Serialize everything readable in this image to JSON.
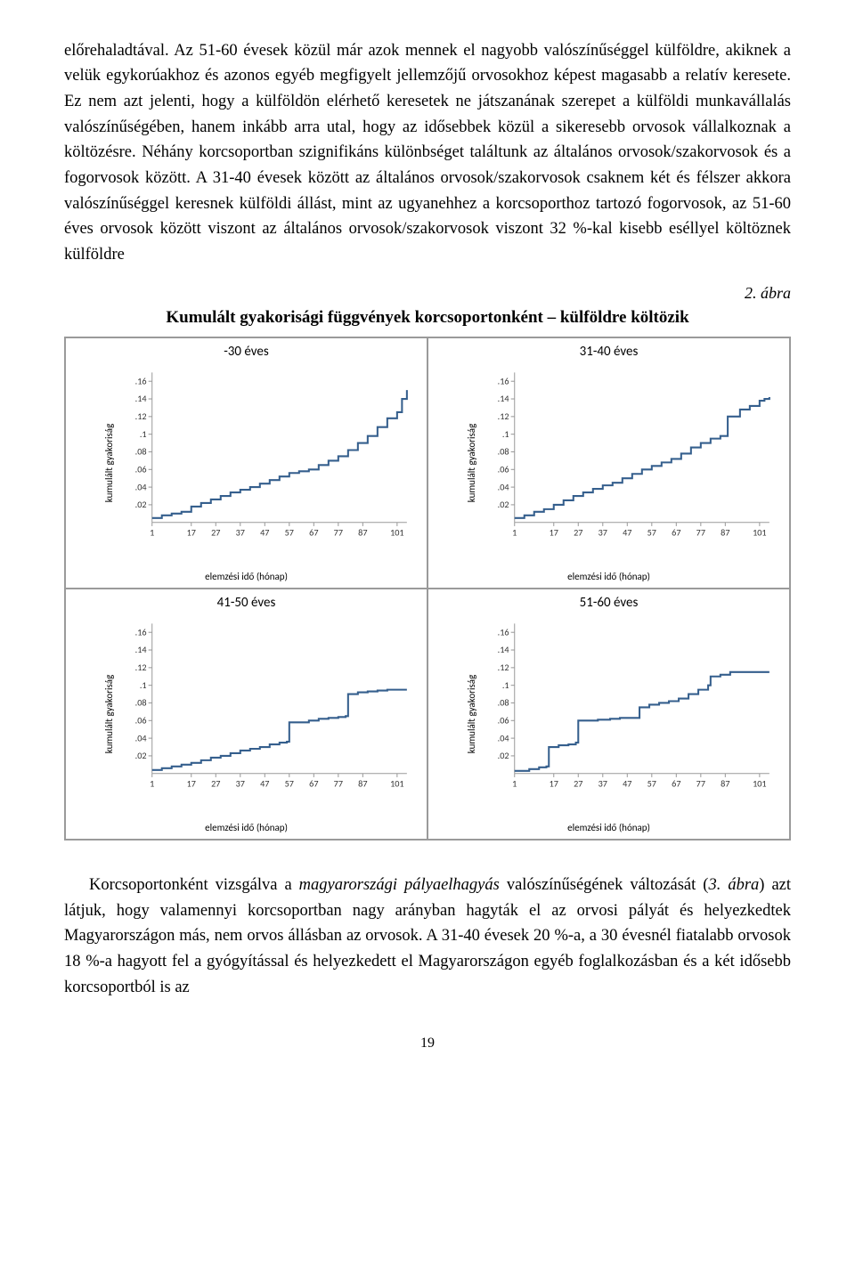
{
  "paragraph1": "előrehaladtával. Az 51-60 évesek közül már azok mennek el nagyobb valószínűséggel külföldre, akiknek a velük egykorúakhoz és azonos egyéb megfigyelt jellemzőjű orvosokhoz képest magasabb a relatív keresete. Ez nem azt jelenti, hogy a külföldön elérhető keresetek ne játszanának szerepet a külföldi munkavállalás valószínűségében, hanem inkább arra utal, hogy az idősebbek közül a sikeresebb orvosok vállalkoznak a költözésre. Néhány korcsoportban szignifikáns különbséget találtunk az általános orvosok/szakorvosok és a fogorvosok között. A 31-40 évesek között az általános orvosok/szakorvosok csaknem két és félszer akkora valószínűséggel keresnek külföldi állást, mint az ugyanehhez a korcsoporthoz tartozó fogorvosok, az 51-60 éves orvosok között viszont az általános orvosok/szakorvosok viszont 32 %-kal kisebb  eséllyel költöznek külföldre",
  "figLabel": "2. ábra",
  "figTitle": "Kumulált gyakorisági függvények korcsoportonként – külföldre költözik",
  "panels": [
    {
      "title": "-30 éves",
      "ylabel": "kumulált gyakoriság",
      "xlabel": "elemzési idő (hónap)",
      "xlim": [
        1,
        105
      ],
      "ylim": [
        0,
        0.17
      ],
      "xticks": [
        1,
        17,
        27,
        37,
        47,
        57,
        67,
        77,
        87,
        101
      ],
      "yticks": [
        0.02,
        0.04,
        0.06,
        0.08,
        0.1,
        0.12,
        0.14,
        0.16
      ],
      "series_color": "#355f8d",
      "bg": "#ffffff",
      "points": [
        [
          1,
          0.005
        ],
        [
          5,
          0.008
        ],
        [
          9,
          0.01
        ],
        [
          13,
          0.012
        ],
        [
          17,
          0.018
        ],
        [
          21,
          0.022
        ],
        [
          25,
          0.026
        ],
        [
          29,
          0.03
        ],
        [
          33,
          0.034
        ],
        [
          37,
          0.037
        ],
        [
          41,
          0.04
        ],
        [
          45,
          0.044
        ],
        [
          49,
          0.048
        ],
        [
          53,
          0.052
        ],
        [
          57,
          0.056
        ],
        [
          61,
          0.058
        ],
        [
          65,
          0.06
        ],
        [
          69,
          0.065
        ],
        [
          73,
          0.07
        ],
        [
          77,
          0.075
        ],
        [
          81,
          0.082
        ],
        [
          85,
          0.09
        ],
        [
          89,
          0.098
        ],
        [
          93,
          0.108
        ],
        [
          97,
          0.118
        ],
        [
          101,
          0.125
        ],
        [
          103,
          0.14
        ],
        [
          105,
          0.15
        ]
      ]
    },
    {
      "title": "31-40 éves",
      "ylabel": "kumulált gyakoriság",
      "xlabel": "elemzési idő (hónap)",
      "xlim": [
        1,
        105
      ],
      "ylim": [
        0,
        0.17
      ],
      "xticks": [
        1,
        17,
        27,
        37,
        47,
        57,
        67,
        77,
        87,
        101
      ],
      "yticks": [
        0.02,
        0.04,
        0.06,
        0.08,
        0.1,
        0.12,
        0.14,
        0.16
      ],
      "series_color": "#355f8d",
      "bg": "#ffffff",
      "points": [
        [
          1,
          0.005
        ],
        [
          5,
          0.008
        ],
        [
          9,
          0.012
        ],
        [
          13,
          0.015
        ],
        [
          17,
          0.02
        ],
        [
          21,
          0.025
        ],
        [
          25,
          0.03
        ],
        [
          29,
          0.034
        ],
        [
          33,
          0.038
        ],
        [
          37,
          0.042
        ],
        [
          41,
          0.045
        ],
        [
          45,
          0.05
        ],
        [
          49,
          0.055
        ],
        [
          53,
          0.06
        ],
        [
          57,
          0.064
        ],
        [
          61,
          0.068
        ],
        [
          65,
          0.072
        ],
        [
          69,
          0.078
        ],
        [
          73,
          0.085
        ],
        [
          77,
          0.09
        ],
        [
          81,
          0.095
        ],
        [
          85,
          0.098
        ],
        [
          87,
          0.098
        ],
        [
          88,
          0.12
        ],
        [
          93,
          0.128
        ],
        [
          97,
          0.132
        ],
        [
          101,
          0.138
        ],
        [
          103,
          0.14
        ],
        [
          105,
          0.142
        ]
      ]
    },
    {
      "title": "41-50 éves",
      "ylabel": "kumulált gyakoriság",
      "xlabel": "elemzési idő (hónap)",
      "xlim": [
        1,
        105
      ],
      "ylim": [
        0,
        0.17
      ],
      "xticks": [
        1,
        17,
        27,
        37,
        47,
        57,
        67,
        77,
        87,
        101
      ],
      "yticks": [
        0.02,
        0.04,
        0.06,
        0.08,
        0.1,
        0.12,
        0.14,
        0.16
      ],
      "series_color": "#355f8d",
      "bg": "#ffffff",
      "points": [
        [
          1,
          0.004
        ],
        [
          5,
          0.006
        ],
        [
          9,
          0.008
        ],
        [
          13,
          0.01
        ],
        [
          17,
          0.012
        ],
        [
          21,
          0.015
        ],
        [
          25,
          0.018
        ],
        [
          29,
          0.02
        ],
        [
          33,
          0.023
        ],
        [
          37,
          0.026
        ],
        [
          41,
          0.028
        ],
        [
          45,
          0.03
        ],
        [
          49,
          0.033
        ],
        [
          53,
          0.035
        ],
        [
          56,
          0.036
        ],
        [
          57,
          0.058
        ],
        [
          61,
          0.058
        ],
        [
          65,
          0.06
        ],
        [
          69,
          0.062
        ],
        [
          73,
          0.063
        ],
        [
          77,
          0.064
        ],
        [
          80,
          0.065
        ],
        [
          81,
          0.09
        ],
        [
          85,
          0.092
        ],
        [
          89,
          0.093
        ],
        [
          93,
          0.094
        ],
        [
          97,
          0.095
        ],
        [
          101,
          0.095
        ],
        [
          105,
          0.095
        ]
      ]
    },
    {
      "title": "51-60 éves",
      "ylabel": "kumulált gyakoriság",
      "xlabel": "elemzési idő (hónap)",
      "xlim": [
        1,
        105
      ],
      "ylim": [
        0,
        0.17
      ],
      "xticks": [
        1,
        17,
        27,
        37,
        47,
        57,
        67,
        77,
        87,
        101
      ],
      "yticks": [
        0.02,
        0.04,
        0.06,
        0.08,
        0.1,
        0.12,
        0.14,
        0.16
      ],
      "series_color": "#355f8d",
      "bg": "#ffffff",
      "points": [
        [
          1,
          0.003
        ],
        [
          7,
          0.005
        ],
        [
          11,
          0.007
        ],
        [
          14,
          0.008
        ],
        [
          15,
          0.03
        ],
        [
          19,
          0.032
        ],
        [
          23,
          0.033
        ],
        [
          26,
          0.035
        ],
        [
          27,
          0.06
        ],
        [
          31,
          0.06
        ],
        [
          35,
          0.061
        ],
        [
          40,
          0.062
        ],
        [
          44,
          0.063
        ],
        [
          48,
          0.063
        ],
        [
          52,
          0.075
        ],
        [
          56,
          0.078
        ],
        [
          60,
          0.08
        ],
        [
          64,
          0.082
        ],
        [
          68,
          0.085
        ],
        [
          72,
          0.09
        ],
        [
          76,
          0.095
        ],
        [
          80,
          0.1
        ],
        [
          81,
          0.11
        ],
        [
          85,
          0.112
        ],
        [
          89,
          0.115
        ],
        [
          93,
          0.115
        ],
        [
          97,
          0.115
        ],
        [
          101,
          0.115
        ],
        [
          105,
          0.115
        ]
      ]
    }
  ],
  "paragraph2_pre": "Korcsoportonként vizsgálva a ",
  "paragraph2_em1": "magyarországi pályaelhagyás",
  "paragraph2_mid1": " valószínűségének változását (",
  "paragraph2_em2": "3. ábra",
  "paragraph2_post": ") azt látjuk, hogy valamennyi korcsoportban nagy arányban hagyták el az orvosi pályát és helyezkedtek Magyarországon más, nem orvos állásban az orvosok. A 31-40 évesek 20 %-a, a 30 évesnél fiatalabb orvosok 18 %-a hagyott fel a gyógyítással és helyezkedett el Magyarországon egyéb foglalkozásban és  a két idősebb korcsoportból is az",
  "pageNumber": "19"
}
